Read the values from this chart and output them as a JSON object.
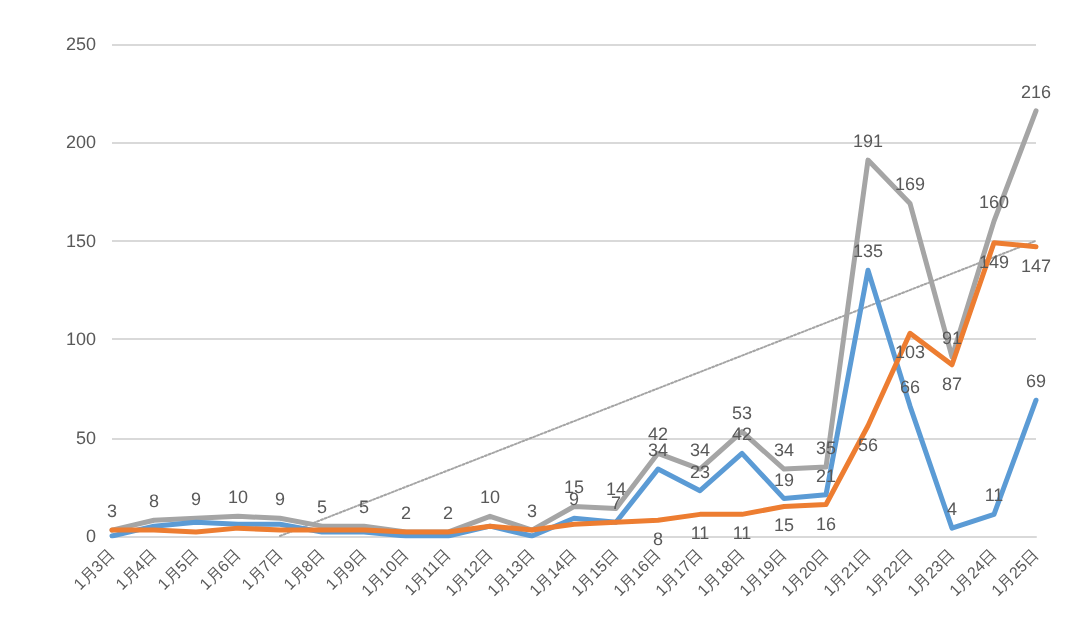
{
  "chart_data": {
    "type": "line",
    "categories": [
      "1月3日",
      "1月4日",
      "1月5日",
      "1月6日",
      "1月7日",
      "1月8日",
      "1月9日",
      "1月10日",
      "1月11日",
      "1月12日",
      "1月13日",
      "1月14日",
      "1月15日",
      "1月16日",
      "1月17日",
      "1月18日",
      "1月19日",
      "1月20日",
      "1月21日",
      "1月22日",
      "1月23日",
      "1月24日",
      "1月25日"
    ],
    "series": [
      {
        "color": "#a5a5a5",
        "values": [
          3,
          8,
          9,
          10,
          9,
          5,
          5,
          2,
          2,
          10,
          3,
          15,
          14,
          42,
          34,
          53,
          34,
          35,
          191,
          169,
          91,
          160,
          216
        ],
        "value_labels": [
          "3",
          "8",
          "9",
          "10",
          "9",
          "5",
          "5",
          "2",
          "2",
          "10",
          "3",
          "15",
          "14",
          "42",
          "34",
          "53",
          "34",
          "35",
          "191",
          "169",
          "91",
          "160",
          "216"
        ]
      },
      {
        "color": "#5b9bd5",
        "values": [
          0,
          5,
          7,
          6,
          6,
          2,
          2,
          0,
          0,
          5,
          0,
          9,
          7,
          34,
          23,
          42,
          19,
          21,
          135,
          66,
          4,
          11,
          69
        ],
        "value_labels": [
          null,
          null,
          null,
          null,
          null,
          null,
          null,
          null,
          null,
          null,
          null,
          "9",
          "7",
          "34",
          "23",
          "42",
          "19",
          "21",
          "135",
          "66",
          "4",
          "11",
          "69"
        ]
      },
      {
        "color": "#ed7d31",
        "values": [
          3,
          3,
          2,
          4,
          3,
          3,
          3,
          2,
          2,
          5,
          3,
          6,
          7,
          8,
          11,
          11,
          15,
          16,
          56,
          103,
          87,
          149,
          147
        ],
        "value_labels": [
          null,
          null,
          null,
          null,
          null,
          null,
          null,
          null,
          null,
          null,
          null,
          null,
          null,
          "8",
          "11",
          "11",
          "15",
          "16",
          "56",
          "103",
          "87",
          "149",
          "147"
        ]
      },
      {
        "type": "line",
        "color": "#a5a5a5",
        "line_style": "dotted",
        "x": [
          "1月7日",
          "1月25日"
        ],
        "values": [
          0,
          150
        ]
      }
    ],
    "ylim": [
      0,
      250
    ],
    "yticks": [
      0,
      50,
      100,
      150,
      200,
      250
    ],
    "grid": "y",
    "marker": "none",
    "line_style": "solid"
  }
}
